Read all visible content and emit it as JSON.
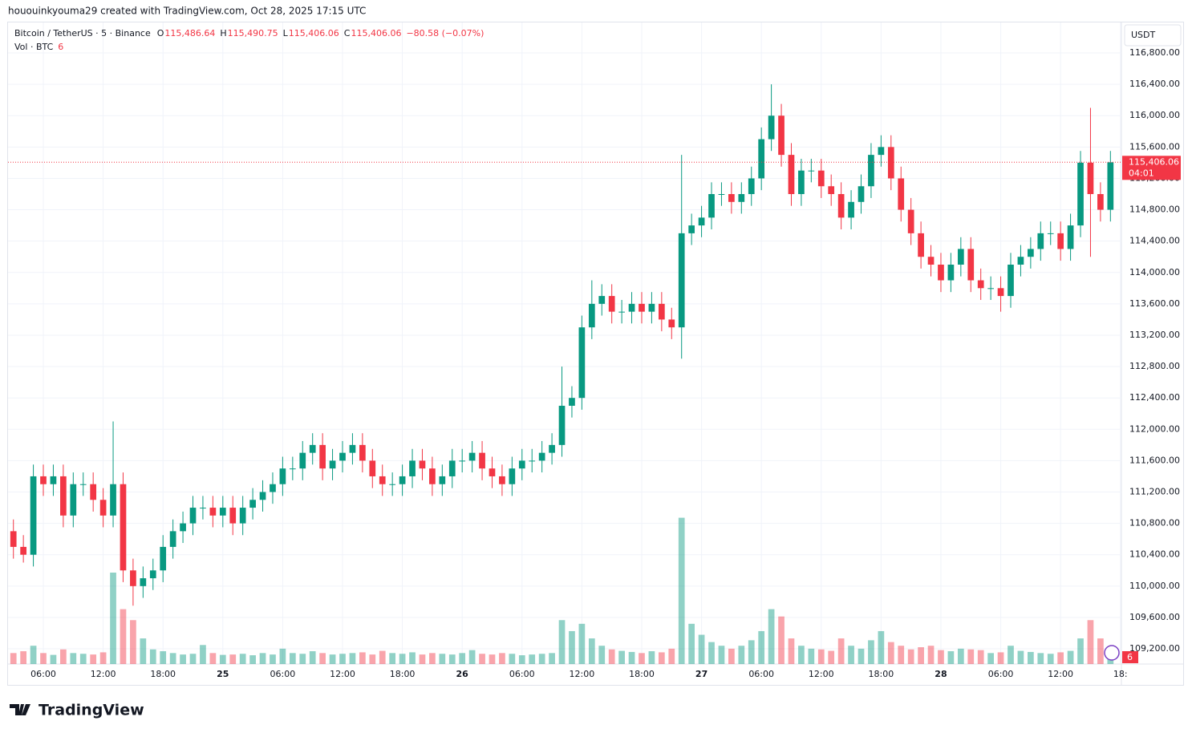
{
  "header": {
    "watermark": "hououinkyouma29 created with TradingView.com, Oct 28, 2025 17:15 UTC",
    "brand": "TradingView"
  },
  "chart_data": {
    "type": "candlestick",
    "symbol": "Bitcoin / TetherUS · 5 · Binance",
    "ohlc_legend": [
      {
        "key": "O",
        "value": "115,486.64"
      },
      {
        "key": "H",
        "value": "115,490.75"
      },
      {
        "key": "L",
        "value": "115,406.06"
      },
      {
        "key": "C",
        "value": "115,406.06"
      }
    ],
    "change": "−80.58 (−0.07%)",
    "volume_legend": {
      "name": "Vol · BTC",
      "value": "6"
    },
    "currency": "USDT",
    "up_color": "#089981",
    "down_color": "#f23645",
    "open": [
      110700,
      110500,
      110400,
      111400,
      111300,
      111400,
      110900,
      111300,
      111300,
      111100,
      110900,
      111300,
      110200,
      110000,
      110100,
      110200,
      110500,
      110700,
      110800,
      111000,
      111000,
      110900,
      111000,
      110800,
      111000,
      111100,
      111200,
      111300,
      111500,
      111500,
      111700,
      111800,
      111500,
      111600,
      111700,
      111800,
      111600,
      111400,
      111300,
      111300,
      111400,
      111600,
      111500,
      111300,
      111400,
      111600,
      111600,
      111700,
      111500,
      111400,
      111300,
      111500,
      111600,
      111600,
      111700,
      111800,
      112300,
      112400,
      113300,
      113600,
      113700,
      113500,
      113500,
      113600,
      113500,
      113600,
      113400,
      113300,
      114500,
      114600,
      114700,
      115000,
      115000,
      114900,
      115000,
      115200,
      115700,
      116000,
      115500,
      115000,
      115300,
      115300,
      115100,
      115000,
      114700,
      114900,
      115100,
      115500,
      115600,
      115200,
      114800,
      114500,
      114200,
      114100,
      113900,
      114100,
      114300,
      113900,
      113800,
      113800,
      113700,
      114100,
      114200,
      114300,
      114500,
      114500,
      114300,
      114600,
      115400,
      115000,
      114800
    ],
    "high": [
      110850,
      110650,
      111550,
      111550,
      111550,
      111550,
      111450,
      111450,
      111450,
      111250,
      112100,
      111450,
      110350,
      110250,
      110350,
      110650,
      110850,
      110950,
      111150,
      111150,
      111150,
      111150,
      111150,
      111150,
      111250,
      111350,
      111450,
      111650,
      111650,
      111850,
      111950,
      111950,
      111750,
      111850,
      111950,
      111950,
      111750,
      111550,
      111450,
      111550,
      111750,
      111750,
      111650,
      111550,
      111750,
      111750,
      111850,
      111850,
      111650,
      111550,
      111650,
      111750,
      111750,
      111850,
      111950,
      112800,
      112550,
      113450,
      113900,
      113850,
      113850,
      113650,
      113750,
      113750,
      113750,
      113750,
      113550,
      115500,
      114750,
      114850,
      115150,
      115150,
      115150,
      115150,
      115350,
      115850,
      116400,
      116150,
      115650,
      115450,
      115450,
      115450,
      115250,
      115150,
      115050,
      115250,
      115650,
      115750,
      115750,
      115350,
      114950,
      114650,
      114350,
      114250,
      114250,
      114450,
      114450,
      114050,
      113950,
      113950,
      114250,
      114350,
      114450,
      114650,
      114650,
      114650,
      114750,
      115550,
      116100,
      115150,
      115550
    ],
    "low": [
      110350,
      110300,
      110250,
      111150,
      111150,
      110750,
      110750,
      111150,
      110950,
      110750,
      110750,
      110050,
      109750,
      109850,
      109950,
      110050,
      110350,
      110550,
      110650,
      110850,
      110750,
      110750,
      110650,
      110650,
      110850,
      110950,
      111050,
      111150,
      111350,
      111350,
      111550,
      111350,
      111350,
      111450,
      111550,
      111450,
      111250,
      111150,
      111150,
      111150,
      111250,
      111350,
      111150,
      111150,
      111250,
      111450,
      111450,
      111350,
      111250,
      111150,
      111150,
      111350,
      111450,
      111450,
      111550,
      111650,
      112150,
      112250,
      113150,
      113450,
      113350,
      113350,
      113350,
      113350,
      113350,
      113250,
      113150,
      112900,
      114350,
      114450,
      114550,
      114850,
      114750,
      114750,
      114850,
      115050,
      115550,
      115350,
      114850,
      114850,
      115150,
      114950,
      114850,
      114550,
      114550,
      114750,
      114950,
      115350,
      115050,
      114650,
      114350,
      114050,
      113950,
      113750,
      113750,
      113950,
      113750,
      113650,
      113650,
      113500,
      113550,
      113950,
      114050,
      114150,
      114350,
      114150,
      114150,
      114450,
      114200,
      114650,
      114650
    ],
    "close": [
      110500,
      110400,
      111400,
      111300,
      111400,
      110900,
      111300,
      111300,
      111100,
      110900,
      111300,
      110200,
      110000,
      110100,
      110200,
      110500,
      110700,
      110800,
      111000,
      111000,
      110900,
      111000,
      110800,
      111000,
      111100,
      111200,
      111300,
      111500,
      111500,
      111700,
      111800,
      111500,
      111600,
      111700,
      111800,
      111600,
      111400,
      111300,
      111300,
      111400,
      111600,
      111500,
      111300,
      111400,
      111600,
      111600,
      111700,
      111500,
      111400,
      111300,
      111500,
      111600,
      111600,
      111700,
      111800,
      112300,
      112400,
      113300,
      113600,
      113700,
      113500,
      113500,
      113600,
      113500,
      113600,
      113400,
      113300,
      114500,
      114600,
      114700,
      115000,
      115000,
      114900,
      115000,
      115200,
      115700,
      116000,
      115500,
      115000,
      115300,
      115300,
      115100,
      115000,
      114700,
      114900,
      115100,
      115500,
      115600,
      115200,
      114800,
      114500,
      114200,
      114100,
      113900,
      114100,
      114300,
      113900,
      113800,
      113800,
      113700,
      114100,
      114200,
      114300,
      114500,
      114500,
      114300,
      114600,
      115400,
      115000,
      114800,
      115406.06
    ],
    "volume": [
      300,
      350,
      500,
      300,
      250,
      400,
      300,
      280,
      260,
      320,
      2500,
      1500,
      1200,
      700,
      400,
      350,
      300,
      260,
      280,
      520,
      300,
      250,
      260,
      280,
      240,
      300,
      260,
      420,
      300,
      280,
      350,
      300,
      260,
      280,
      300,
      320,
      260,
      360,
      300,
      280,
      320,
      260,
      300,
      280,
      260,
      300,
      380,
      280,
      260,
      300,
      280,
      240,
      260,
      280,
      300,
      1200,
      900,
      1100,
      700,
      500,
      400,
      360,
      330,
      300,
      350,
      320,
      420,
      4000,
      1100,
      800,
      600,
      500,
      420,
      500,
      650,
      900,
      1500,
      1300,
      700,
      500,
      420,
      400,
      360,
      700,
      500,
      420,
      650,
      900,
      600,
      500,
      400,
      460,
      500,
      380,
      350,
      420,
      400,
      380,
      300,
      320,
      500,
      360,
      330,
      300,
      280,
      320,
      360,
      700,
      1200,
      700,
      420
    ],
    "price_label": {
      "value": 115406.06,
      "label": "115,406.06"
    },
    "countdown": "04:01",
    "xlim": [
      -0.54,
      111.1
    ],
    "xticks": [
      {
        "value": 3,
        "label": "06:00"
      },
      {
        "value": 9,
        "label": "12:00"
      },
      {
        "value": 15,
        "label": "18:00"
      },
      {
        "value": 21,
        "label": "25"
      },
      {
        "value": 27,
        "label": "06:00"
      },
      {
        "value": 33,
        "label": "12:00"
      },
      {
        "value": 39,
        "label": "18:00"
      },
      {
        "value": 45,
        "label": "26"
      },
      {
        "value": 51,
        "label": "06:00"
      },
      {
        "value": 57,
        "label": "12:00"
      },
      {
        "value": 63,
        "label": "18:00"
      },
      {
        "value": 69,
        "label": "27"
      },
      {
        "value": 75,
        "label": "06:00"
      },
      {
        "value": 81,
        "label": "12:00"
      },
      {
        "value": 87,
        "label": "18:00"
      },
      {
        "value": 93,
        "label": "28"
      },
      {
        "value": 99,
        "label": "06:00"
      },
      {
        "value": 105,
        "label": "12:00"
      },
      {
        "value": 111,
        "label": "18:"
      }
    ],
    "ylim": [
      109006,
      117189
    ],
    "vlim": [
      0,
      5000
    ],
    "yticks": [
      {
        "value": 109200,
        "label": "109,200.00"
      },
      {
        "value": 109600,
        "label": "109,600.00"
      },
      {
        "value": 110000,
        "label": "110,000.00"
      },
      {
        "value": 110400,
        "label": "110,400.00"
      },
      {
        "value": 110800,
        "label": "110,800.00"
      },
      {
        "value": 111200,
        "label": "111,200.00"
      },
      {
        "value": 111600,
        "label": "111,600.00"
      },
      {
        "value": 112000,
        "label": "112,000.00"
      },
      {
        "value": 112400,
        "label": "112,400.00"
      },
      {
        "value": 112800,
        "label": "112,800.00"
      },
      {
        "value": 113200,
        "label": "113,200.00"
      },
      {
        "value": 113600,
        "label": "113,600.00"
      },
      {
        "value": 114000,
        "label": "114,000.00"
      },
      {
        "value": 114400,
        "label": "114,400.00"
      },
      {
        "value": 114800,
        "label": "114,800.00"
      },
      {
        "value": 115200,
        "label": "115,200.00"
      },
      {
        "value": 115600,
        "label": "115,600.00"
      },
      {
        "value": 116000,
        "label": "116,000.00"
      },
      {
        "value": 116400,
        "label": "116,400.00"
      },
      {
        "value": 116800,
        "label": "116,800.00"
      }
    ],
    "grid": true
  }
}
